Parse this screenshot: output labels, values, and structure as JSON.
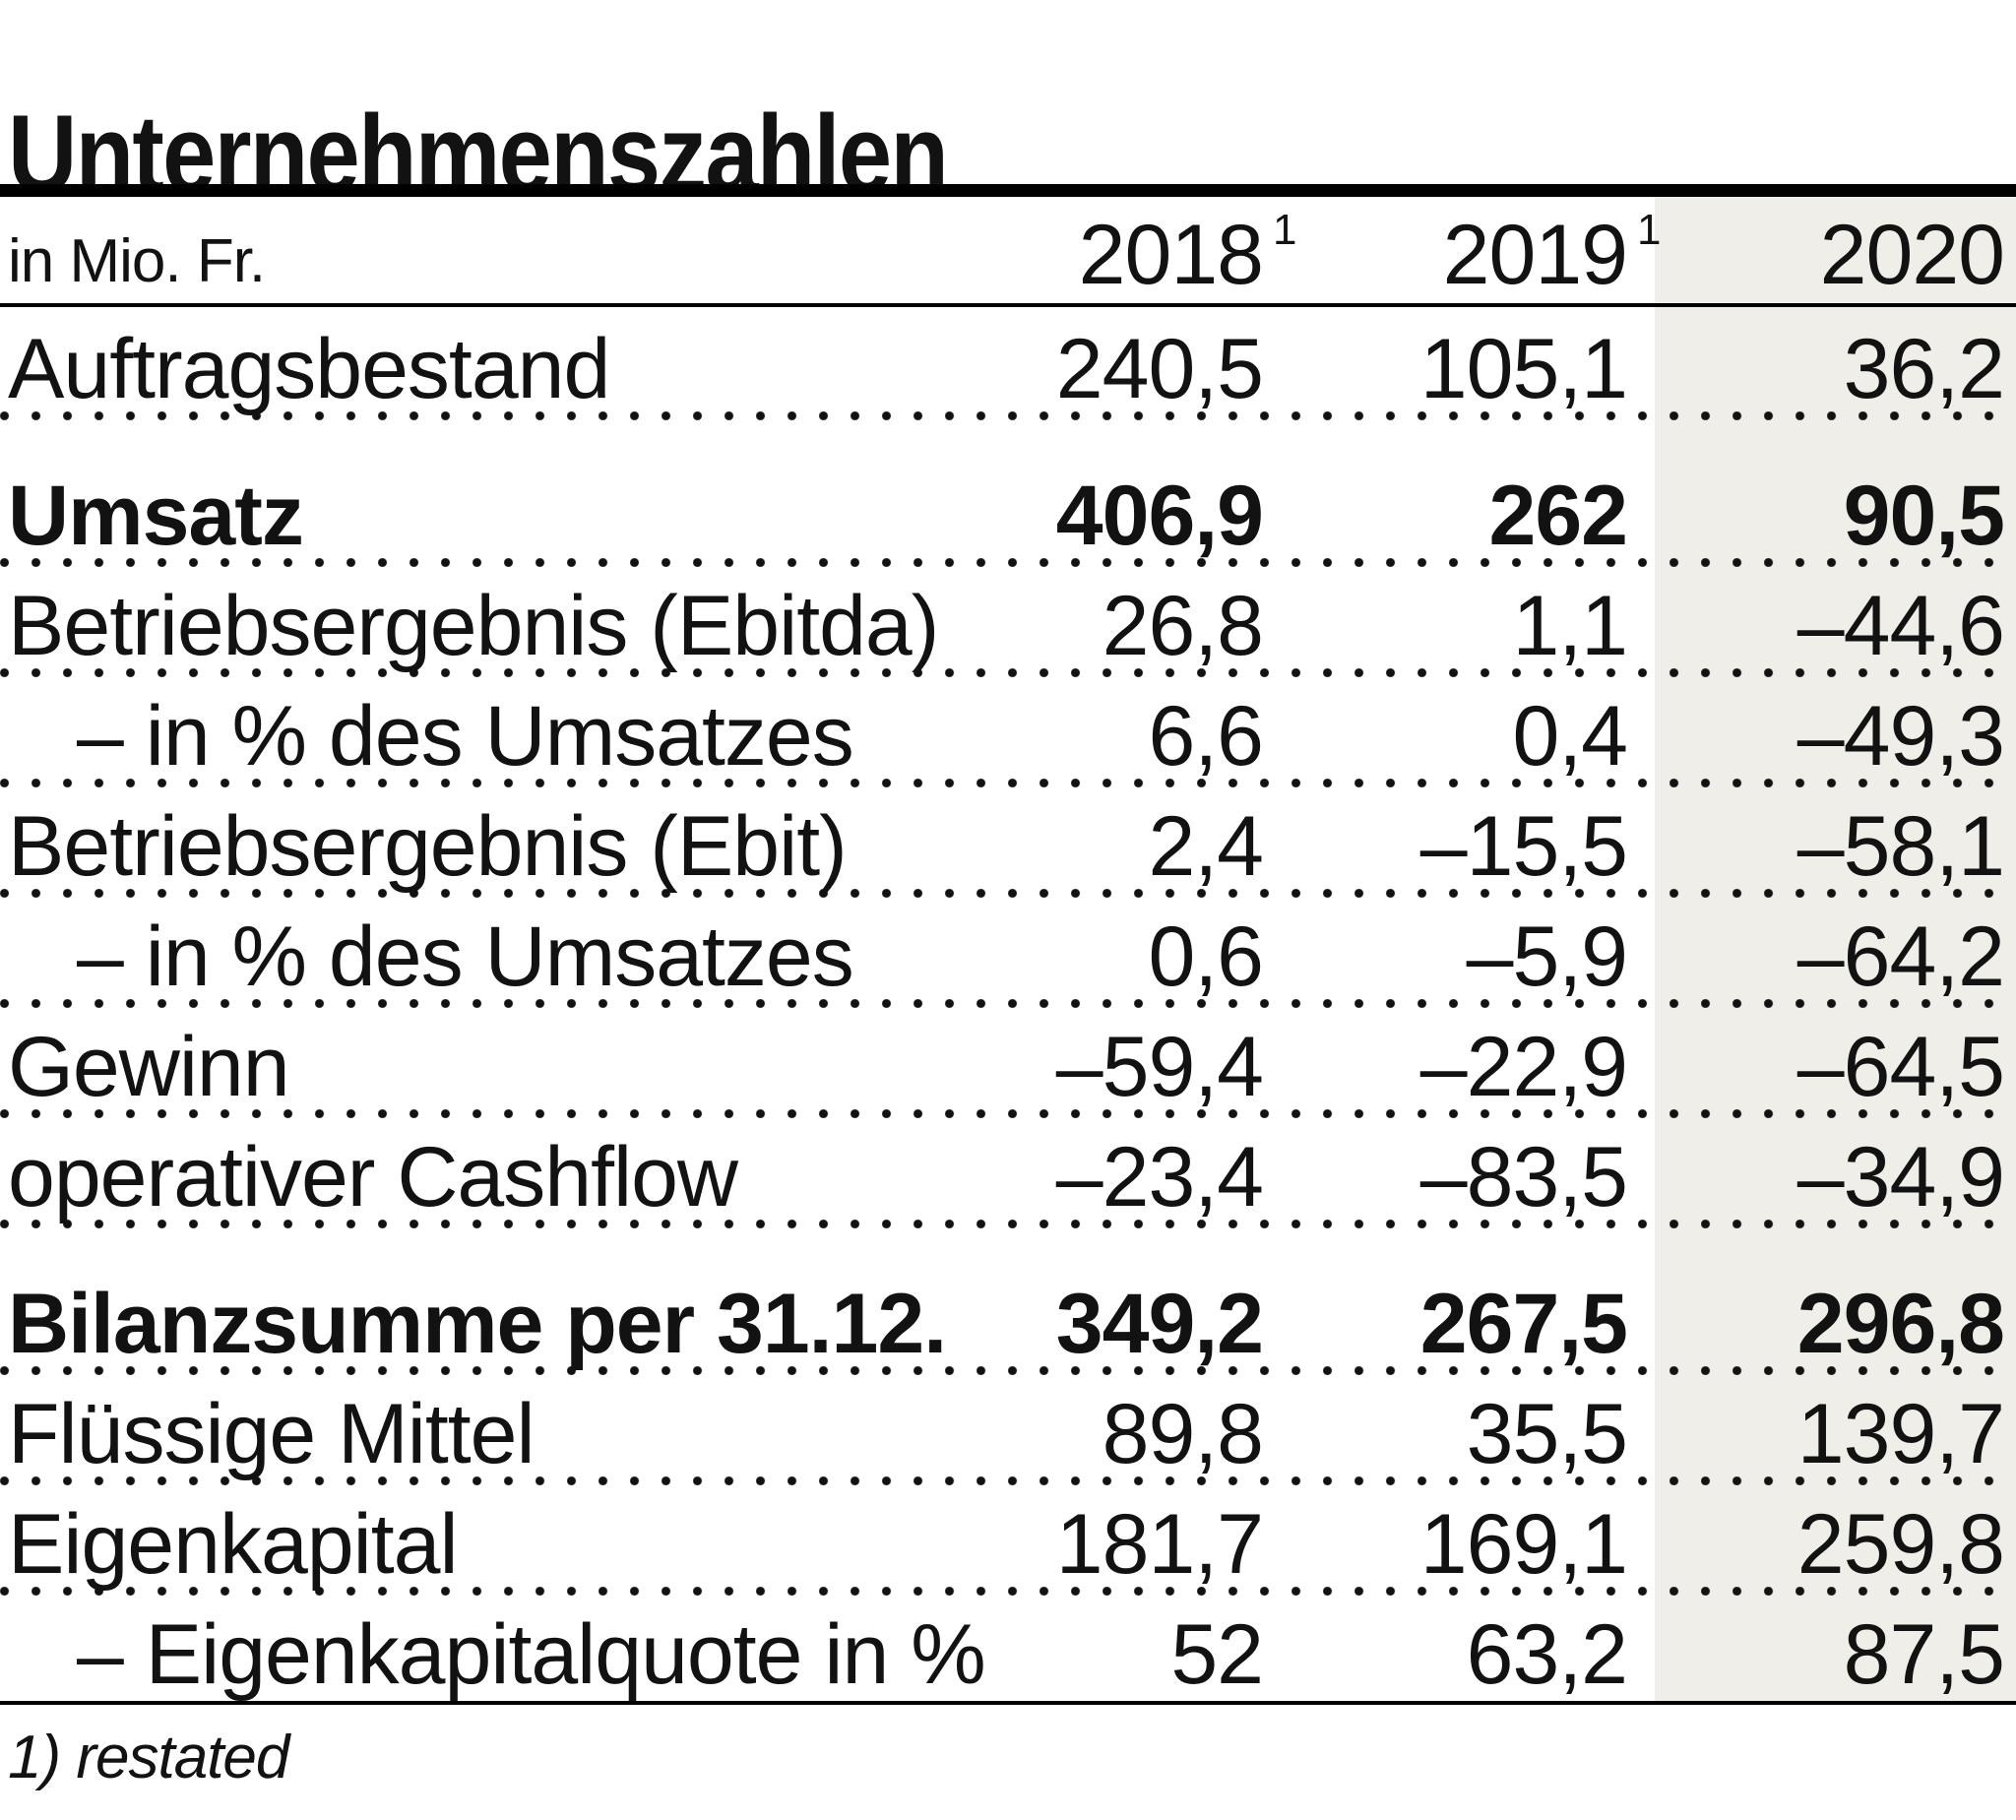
{
  "title": "Unternehmenszahlen",
  "table": {
    "unit_label": "in Mio. Fr.",
    "columns": [
      {
        "year": "2018",
        "footnote_mark": "1"
      },
      {
        "year": "2019",
        "footnote_mark": "1"
      },
      {
        "year": "2020",
        "footnote_mark": ""
      }
    ],
    "rows": [
      {
        "label": "Auftragsbestand",
        "v2018": "240,5",
        "v2019": "105,1",
        "v2020": "36,2"
      },
      {
        "label": "Umsatz",
        "v2018": "406,9",
        "v2019": "262",
        "v2020": "90,5"
      },
      {
        "label": "Betriebsergebnis (Ebitda)",
        "v2018": "26,8",
        "v2019": "1,1",
        "v2020": "–44,6"
      },
      {
        "label": "– in % des Umsatzes",
        "v2018": "6,6",
        "v2019": "0,4",
        "v2020": "–49,3"
      },
      {
        "label": "Betriebsergebnis (Ebit)",
        "v2018": "2,4",
        "v2019": "–15,5",
        "v2020": "–58,1"
      },
      {
        "label": "– in % des Umsatzes",
        "v2018": "0,6",
        "v2019": "–5,9",
        "v2020": "–64,2"
      },
      {
        "label": "Gewinn",
        "v2018": "–59,4",
        "v2019": "–22,9",
        "v2020": "–64,5"
      },
      {
        "label": "operativer Cashflow",
        "v2018": "–23,4",
        "v2019": "–83,5",
        "v2020": "–34,9"
      },
      {
        "label": "Bilanzsumme per 31.12.",
        "v2018": "349,2",
        "v2019": "267,5",
        "v2020": "296,8"
      },
      {
        "label": "Flüssige Mittel",
        "v2018": "89,8",
        "v2019": "35,5",
        "v2020": "139,7"
      },
      {
        "label": "Eigenkapital",
        "v2018": "181,7",
        "v2019": "169,1",
        "v2020": "259,8"
      },
      {
        "label": "– Eigenkapitalquote in %",
        "v2018": "52",
        "v2019": "63,2",
        "v2020": "87,5"
      }
    ]
  },
  "footnote": "1) restated",
  "colors": {
    "text": "#121212",
    "rule": "#000000",
    "dot": "#121212",
    "highlight_column_bg": "#efeee8"
  },
  "chart_data": {
    "type": "table",
    "title": "Unternehmenszahlen",
    "unit": "in Mio. Fr.",
    "columns": [
      "2018 (1: restated)",
      "2019 (1: restated)",
      "2020"
    ],
    "highlighted_column": "2020",
    "rows": [
      {
        "label": "Auftragsbestand",
        "bold": false,
        "values": [
          240.5,
          105.1,
          36.2
        ]
      },
      {
        "label": "Umsatz",
        "bold": true,
        "values": [
          406.9,
          262,
          90.5
        ]
      },
      {
        "label": "Betriebsergebnis (Ebitda)",
        "bold": false,
        "values": [
          26.8,
          1.1,
          -44.6
        ]
      },
      {
        "label": "– in % des Umsatzes",
        "bold": false,
        "values": [
          6.6,
          0.4,
          -49.3
        ]
      },
      {
        "label": "Betriebsergebnis (Ebit)",
        "bold": false,
        "values": [
          2.4,
          -15.5,
          -58.1
        ]
      },
      {
        "label": "– in % des Umsatzes",
        "bold": false,
        "values": [
          0.6,
          -5.9,
          -64.2
        ]
      },
      {
        "label": "Gewinn",
        "bold": false,
        "values": [
          -59.4,
          -22.9,
          -64.5
        ]
      },
      {
        "label": "operativer Cashflow",
        "bold": false,
        "values": [
          -23.4,
          -83.5,
          -34.9
        ]
      },
      {
        "label": "Bilanzsumme per 31.12.",
        "bold": true,
        "values": [
          349.2,
          267.5,
          296.8
        ]
      },
      {
        "label": "Flüssige Mittel",
        "bold": false,
        "values": [
          89.8,
          35.5,
          139.7
        ]
      },
      {
        "label": "Eigenkapital",
        "bold": false,
        "values": [
          181.7,
          169.1,
          259.8
        ]
      },
      {
        "label": "– Eigenkapitalquote in %",
        "bold": false,
        "values": [
          52,
          63.2,
          87.5
        ]
      }
    ],
    "footnote": "1) restated"
  }
}
